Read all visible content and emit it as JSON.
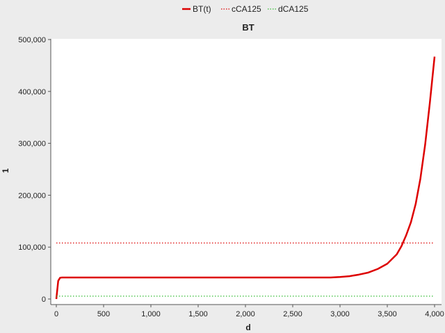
{
  "chart_data": {
    "type": "line",
    "title": "BT",
    "xlabel": "d",
    "ylabel": "1",
    "xlim": [
      0,
      4000
    ],
    "ylim": [
      0,
      500000
    ],
    "x_ticks": [
      0,
      500,
      1000,
      1500,
      2000,
      2500,
      3000,
      3500,
      4000
    ],
    "x_tick_labels": [
      "0",
      "500",
      "1,000",
      "1,500",
      "2,000",
      "2,500",
      "3,000",
      "3,500",
      "4,000"
    ],
    "y_ticks": [
      0,
      100000,
      200000,
      300000,
      400000,
      500000
    ],
    "y_tick_labels": [
      "0",
      "100,000",
      "200,000",
      "300,000",
      "400,000",
      "500,000"
    ],
    "grid": false,
    "legend_position": "top",
    "series": [
      {
        "name": "BT(t)",
        "color": "#dd0000",
        "style": "solid",
        "x": [
          0,
          20,
          40,
          60,
          100,
          500,
          1000,
          1500,
          2000,
          2500,
          2900,
          3000,
          3100,
          3200,
          3300,
          3400,
          3500,
          3600,
          3650,
          3700,
          3750,
          3800,
          3850,
          3900,
          3950,
          4000
        ],
        "y": [
          0,
          35000,
          41000,
          41500,
          41500,
          41500,
          41500,
          41500,
          41500,
          41500,
          41500,
          42500,
          44000,
          47000,
          51000,
          58000,
          68000,
          86000,
          102000,
          123000,
          148000,
          183000,
          232000,
          297000,
          378000,
          467000
        ]
      },
      {
        "name": "cCA125",
        "color": "#dd0000",
        "style": "dotted",
        "x": [
          0,
          4000
        ],
        "y": [
          108000,
          108000
        ]
      },
      {
        "name": "dCA125",
        "color": "#33bb33",
        "style": "dotted",
        "x": [
          0,
          4000
        ],
        "y": [
          5500,
          5500
        ]
      }
    ]
  }
}
